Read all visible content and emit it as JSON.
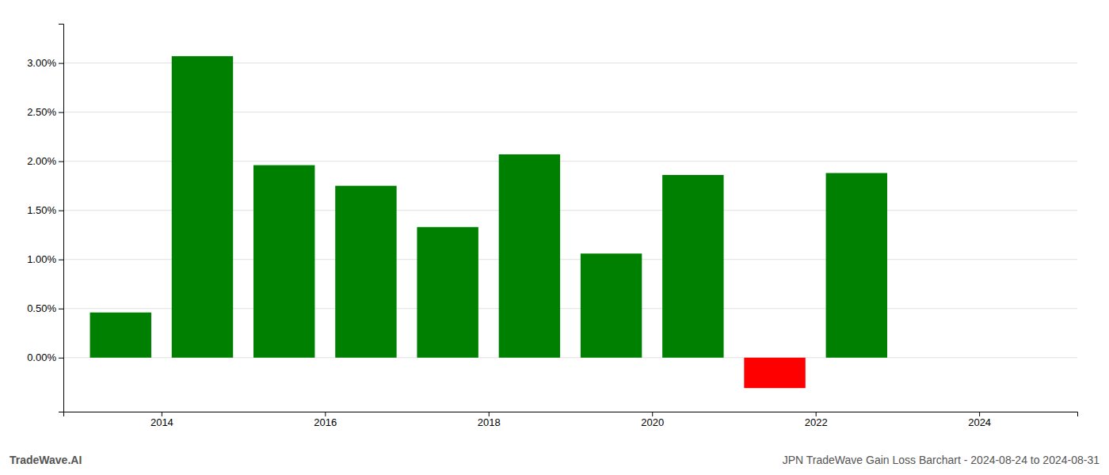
{
  "chart_data": {
    "type": "bar",
    "x": [
      2013.5,
      2014.5,
      2015.5,
      2016.5,
      2017.5,
      2018.5,
      2019.5,
      2020.5,
      2021.5,
      2022.5
    ],
    "values": [
      0.0046,
      0.0307,
      0.0196,
      0.0175,
      0.0133,
      0.0207,
      0.0106,
      0.0186,
      -0.0031,
      0.0188
    ],
    "colors": [
      "#008000",
      "#008000",
      "#008000",
      "#008000",
      "#008000",
      "#008000",
      "#008000",
      "#008000",
      "#ff0000",
      "#008000"
    ],
    "xlim": [
      2012.8,
      2025.2
    ],
    "xticks": [
      2014,
      2016,
      2018,
      2020,
      2022,
      2024
    ],
    "ylim": [
      -0.0055,
      0.034
    ],
    "yticks": [
      {
        "value": 0.0,
        "label": "0.00%"
      },
      {
        "value": 0.005,
        "label": "0.50%"
      },
      {
        "value": 0.01,
        "label": "1.00%"
      },
      {
        "value": 0.015,
        "label": "1.50%"
      },
      {
        "value": 0.02,
        "label": "2.00%"
      },
      {
        "value": 0.025,
        "label": "2.50%"
      },
      {
        "value": 0.03,
        "label": "3.00%"
      }
    ],
    "grid": true,
    "annotations": [
      "TradeWave.AI",
      "JPN TradeWave Gain Loss Barchart - 2024-08-24 to 2024-08-31"
    ]
  }
}
